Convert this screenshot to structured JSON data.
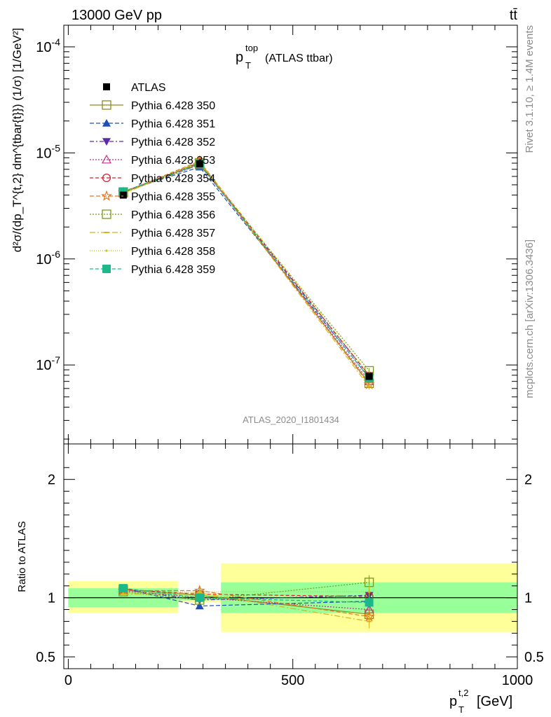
{
  "header": {
    "left": "13000 GeV pp",
    "right": "tt̄"
  },
  "side_labels": {
    "rivet": "Rivet 3.1.10, ≥ 1.4M events",
    "mcplots": "mcplots.cern.ch [arXiv:1306.3436]"
  },
  "plot": {
    "title_main": "p",
    "title_sup": "top",
    "title_sub": "T",
    "title_rest": "(ATLAS ttbar)",
    "watermark": "ATLAS_2020_I1801434",
    "ylabel_main": "d²σ/(dp_T^{t,2} dm^{tbar{t}}) (1/σ) [1/GeV²]",
    "ylabel_ratio": "Ratio to ATLAS",
    "xlabel": "p_T^{t,2} [GeV]",
    "xlabel_main": "p",
    "xlabel_sup": "t,2",
    "xlabel_sub": "T",
    "xlabel_unit": "[GeV]"
  },
  "chart_data": {
    "type": "line",
    "x_scale": "linear",
    "y_scale": "log",
    "xlim": [
      -10,
      1000
    ],
    "ylim": [
      1.8e-08,
      0.00016
    ],
    "ratio_ylim": [
      0.4,
      2.3
    ],
    "x_ticks": [
      "0",
      "500",
      "1000"
    ],
    "y_ticks": [
      "10^-7",
      "10^-6",
      "10^-5",
      "10^-4"
    ],
    "ratio_ticks": [
      "0.5",
      "1",
      "2"
    ],
    "bins": [
      [
        0,
        245
      ],
      [
        245,
        340
      ],
      [
        340,
        1000
      ]
    ],
    "x": [
      122.5,
      292.5,
      670
    ],
    "reference": {
      "name": "ATLAS",
      "values": [
        4e-06,
        7.9e-06,
        7.8e-08
      ],
      "band_inner": [
        [
          0.92,
          1.08
        ],
        [
          0.98,
          1.02
        ],
        [
          0.87,
          1.13
        ]
      ],
      "band_outer": [
        [
          0.87,
          1.14
        ],
        [
          0.96,
          1.04
        ],
        [
          0.71,
          1.29
        ]
      ]
    },
    "series": [
      {
        "name": "Pythia 6.428 350",
        "color": "#8b8b1a",
        "marker": "square-open",
        "dash": "solid",
        "ratio": [
          1.07,
          1.02,
          0.86
        ],
        "err": [
          0.02,
          0.03,
          0.05
        ]
      },
      {
        "name": "Pythia 6.428 351",
        "color": "#1f4fb5",
        "marker": "triangle-up",
        "dash": "6,3",
        "ratio": [
          1.08,
          0.93,
          0.97
        ],
        "err": [
          0.02,
          0.02,
          0.05
        ]
      },
      {
        "name": "Pythia 6.428 352",
        "color": "#5a2aa8",
        "marker": "triangle-down",
        "dash": "6,3,2,3",
        "ratio": [
          1.07,
          0.98,
          1.02
        ],
        "err": [
          0.02,
          0.03,
          0.05
        ]
      },
      {
        "name": "Pythia 6.428 353",
        "color": "#c02e8a",
        "marker": "triangle-up-open",
        "dash": "2,2",
        "ratio": [
          1.06,
          1.0,
          0.9
        ],
        "err": [
          0.02,
          0.03,
          0.05
        ]
      },
      {
        "name": "Pythia 6.428 354",
        "color": "#d4202a",
        "marker": "circle-open",
        "dash": "5,3",
        "ratio": [
          1.07,
          1.03,
          1.01
        ],
        "err": [
          0.02,
          0.03,
          0.05
        ]
      },
      {
        "name": "Pythia 6.428 355",
        "color": "#e8741a",
        "marker": "star-open",
        "dash": "6,3",
        "ratio": [
          1.06,
          1.06,
          0.84
        ],
        "err": [
          0.02,
          0.03,
          0.06
        ]
      },
      {
        "name": "Pythia 6.428 356",
        "color": "#7a9a1a",
        "marker": "square-open",
        "dash": "2,2",
        "ratio": [
          1.05,
          0.98,
          1.13
        ],
        "err": [
          0.02,
          0.03,
          0.06
        ]
      },
      {
        "name": "Pythia 6.428 357",
        "color": "#d8b21a",
        "marker": "dash",
        "dash": "8,3,2,3",
        "ratio": [
          1.03,
          1.04,
          0.8
        ],
        "err": [
          0.02,
          0.03,
          0.06
        ]
      },
      {
        "name": "Pythia 6.428 358",
        "color": "#b8cc1a",
        "marker": "dot",
        "dash": "1,2",
        "ratio": [
          1.04,
          1.05,
          1.05
        ],
        "err": [
          0.02,
          0.03,
          0.06
        ]
      },
      {
        "name": "Pythia 6.428 359",
        "color": "#1ab88a",
        "marker": "square",
        "dash": "5,3",
        "ratio": [
          1.08,
          1.0,
          0.96
        ],
        "err": [
          0.02,
          0.03,
          0.05
        ]
      }
    ]
  }
}
